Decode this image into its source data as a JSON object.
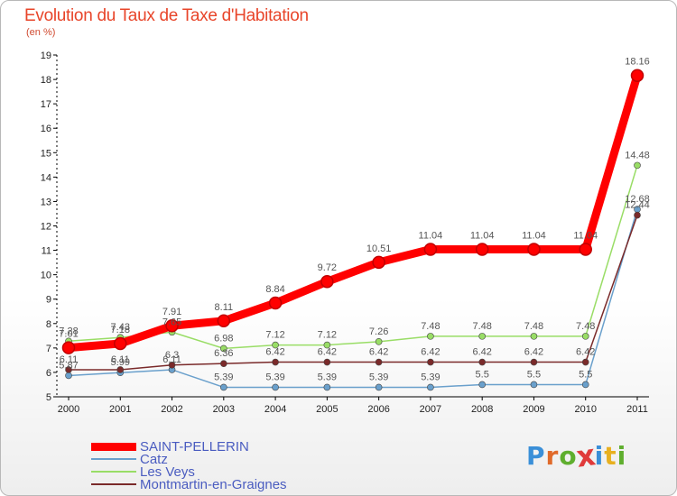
{
  "title": "Evolution du Taux de Taxe d'Habitation",
  "subtitle": "(en %)",
  "logo_text": "Proxiti",
  "logo_colors": [
    "#3a8fd8",
    "#e06a2a",
    "#5fae2e",
    "#e03a3a",
    "#3a8fd8",
    "#e8b020",
    "#5fae2e"
  ],
  "chart_data": {
    "type": "line",
    "title": "Evolution du Taux de Taxe d'Habitation",
    "ylabel": "(en %)",
    "xlabel": "",
    "ylim": [
      5,
      19
    ],
    "yticks": [
      "5",
      "6",
      "7",
      "8",
      "9",
      "10",
      "11",
      "12",
      "13",
      "14",
      "15",
      "16",
      "17",
      "18",
      "19"
    ],
    "x": [
      "2000",
      "2001",
      "2002",
      "2003",
      "2004",
      "2005",
      "2006",
      "2007",
      "2008",
      "2009",
      "2010",
      "2011"
    ],
    "grid": false,
    "legend_position": "bottom-left",
    "series": [
      {
        "name": "SAINT-PELLERIN",
        "color": "#ff0000",
        "values": [
          7.01,
          7.18,
          7.91,
          8.11,
          8.84,
          9.72,
          10.51,
          11.04,
          11.04,
          11.04,
          11.04,
          18.16
        ],
        "labels": [
          "7.01",
          "7.18",
          "7.91",
          "8.11",
          "8.84",
          "9.72",
          "10.51",
          "11.04",
          "11.04",
          "11.04",
          "11.04",
          "18.16"
        ]
      },
      {
        "name": "Catz",
        "color": "#6aa0cc",
        "values": [
          5.87,
          5.99,
          6.11,
          5.39,
          5.39,
          5.39,
          5.39,
          5.39,
          5.5,
          5.5,
          5.5,
          12.68
        ],
        "labels": [
          "5.87",
          "5.99",
          "6.11",
          "5.39",
          "5.39",
          "5.39",
          "5.39",
          "5.39",
          "5.5",
          "5.5",
          "5.5",
          "12.68"
        ]
      },
      {
        "name": "Les Veys",
        "color": "#99dd66",
        "values": [
          7.28,
          7.43,
          7.65,
          6.98,
          7.12,
          7.12,
          7.26,
          7.48,
          7.48,
          7.48,
          7.48,
          14.48
        ],
        "labels": [
          "7.28",
          "7.43",
          "7.65",
          "6.98",
          "7.12",
          "7.12",
          "7.26",
          "7.48",
          "7.48",
          "7.48",
          "7.48",
          "14.48"
        ]
      },
      {
        "name": "Montmartin-en-Graignes",
        "color": "#7a2a2a",
        "values": [
          6.11,
          6.11,
          6.3,
          6.36,
          6.42,
          6.42,
          6.42,
          6.42,
          6.42,
          6.42,
          6.42,
          12.44
        ],
        "labels": [
          "6.11",
          "6.11",
          "6.3",
          "6.36",
          "6.42",
          "6.42",
          "6.42",
          "6.42",
          "6.42",
          "6.42",
          "6.42",
          "12.44"
        ]
      }
    ]
  }
}
